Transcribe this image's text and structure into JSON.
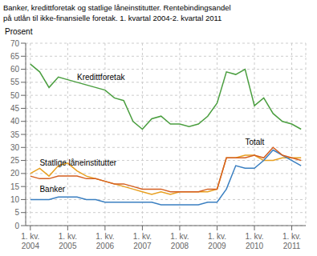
{
  "chart_data": {
    "type": "line",
    "title": "Banker, kredittforetak og statlige låneinstitutter. Rentebindingsandel",
    "subtitle": "på utlån til ikke-finansielle foretak. 1. kvartal 2004-2. kvartal 2011",
    "y_label": "Prosent",
    "categories": [
      "1. kv.\n2004",
      null,
      null,
      null,
      "1. kv.\n2005",
      null,
      null,
      null,
      "1. kv.\n2006",
      null,
      null,
      null,
      "1. kv.\n2007",
      null,
      null,
      null,
      "1. kv.\n2008",
      null,
      null,
      null,
      "1. kv.\n2009",
      null,
      null,
      null,
      "1. kv.\n2010",
      null,
      null,
      null,
      "1. kv.\n2011",
      null
    ],
    "series": [
      {
        "name": "Kredittforetak",
        "color": "#4a9e3f",
        "values": [
          62,
          59,
          53,
          57,
          56,
          55,
          54,
          53,
          52,
          49,
          48,
          40,
          37,
          41,
          42,
          39,
          39,
          38,
          39,
          42,
          47,
          59,
          58,
          60,
          46,
          49,
          43,
          40,
          39,
          37
        ]
      },
      {
        "name": "Statlige låneinstitutter",
        "color": "#e8a020",
        "values": [
          20,
          22,
          19,
          23,
          24,
          21,
          19,
          18,
          17,
          16,
          15,
          14,
          13,
          12,
          13,
          12,
          13,
          13,
          13,
          13,
          14,
          26,
          26,
          27,
          27,
          25,
          25,
          26,
          26,
          26
        ]
      },
      {
        "name": "Banker",
        "color": "#3a7fc1",
        "values": [
          10,
          10,
          10,
          11,
          11,
          11,
          10,
          10,
          9,
          9,
          9,
          9,
          9,
          9,
          8,
          8,
          8,
          8,
          8,
          9,
          9,
          14,
          23,
          22,
          22,
          25,
          29,
          27,
          25,
          23
        ]
      },
      {
        "name": "Totalt",
        "color": "#d45f20",
        "values": [
          19,
          18,
          18,
          19,
          19,
          19,
          18,
          18,
          17,
          16,
          16,
          15,
          14,
          14,
          14,
          13,
          13,
          13,
          13,
          14,
          14,
          26,
          26,
          26,
          27,
          26,
          30,
          27,
          26,
          25
        ]
      }
    ],
    "annotations": [
      {
        "text": "Kredittforetak",
        "x": 5,
        "y": 56
      },
      {
        "text": "Statlige låneinstitutter",
        "x": 1,
        "y": 23
      },
      {
        "text": "Banker",
        "x": 1,
        "y": 13
      },
      {
        "text": "Totalt",
        "x": 23,
        "y": 31
      }
    ],
    "ylim": [
      0,
      70
    ],
    "yticks": [
      0,
      5,
      10,
      15,
      20,
      25,
      30,
      35,
      40,
      45,
      50,
      55,
      60,
      65,
      70
    ],
    "grid": true
  }
}
